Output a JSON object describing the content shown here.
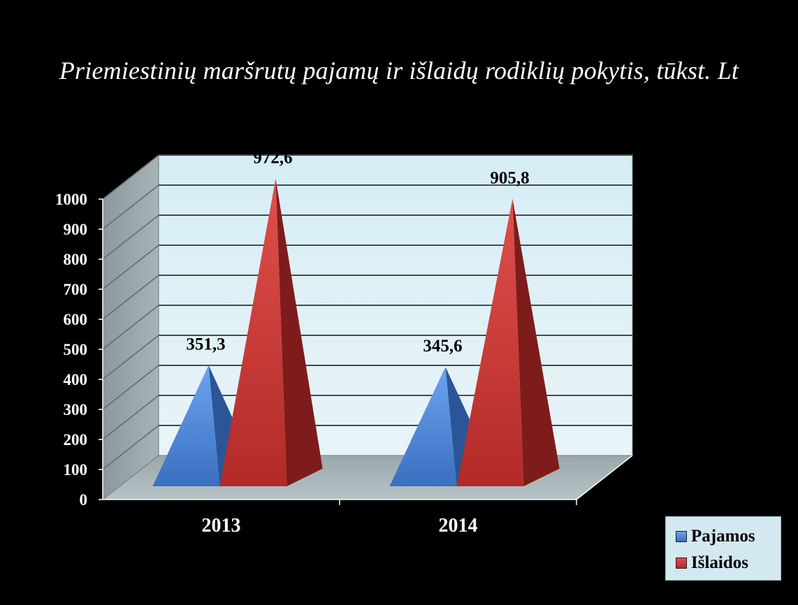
{
  "chart_data": {
    "type": "bar",
    "title": "Priemiestinių maršrutų pajamų  ir išlaidų rodiklių pokytis, tūkst. Lt",
    "categories": [
      "2013",
      "2014"
    ],
    "series": [
      {
        "name": "Pajamos",
        "values": [
          351.3,
          345.6
        ],
        "labels": [
          "351,3",
          "345,6"
        ],
        "color": "#3f7ad0"
      },
      {
        "name": "Išlaidos",
        "values": [
          972.6,
          905.8
        ],
        "labels": [
          "972,6",
          "905,8"
        ],
        "color": "#c2302e"
      }
    ],
    "ylim": [
      0,
      1000
    ],
    "yticks": [
      "0",
      "100",
      "200",
      "300",
      "400",
      "500",
      "600",
      "700",
      "800",
      "900",
      "1000"
    ],
    "grid": true,
    "legend_position": "bottom-right",
    "mark_shape": "pyramid"
  }
}
